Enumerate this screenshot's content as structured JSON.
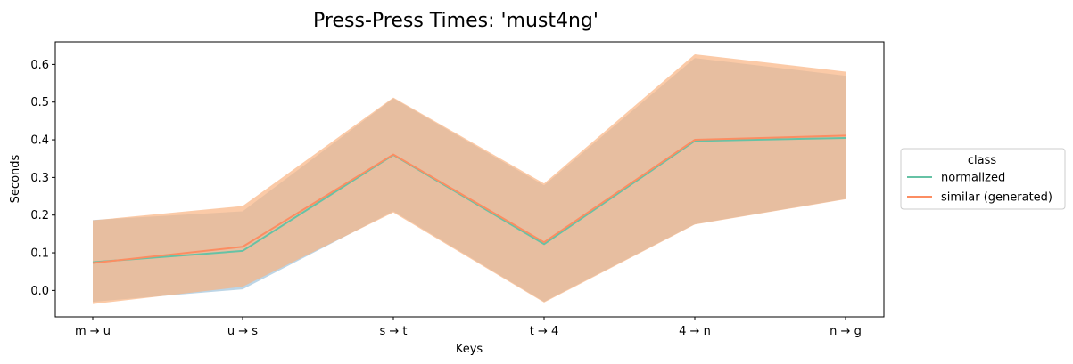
{
  "chart_data": {
    "type": "line",
    "title": "Press-Press Times: 'must4ng'",
    "xlabel": "Keys",
    "ylabel": "Seconds",
    "categories": [
      "m → u",
      "u → s",
      "s → t",
      "t → 4",
      "4 → n",
      "n → g"
    ],
    "ylim": [
      -0.07,
      0.66
    ],
    "yticks": [
      0.0,
      0.1,
      0.2,
      0.3,
      0.4,
      0.5,
      0.6
    ],
    "ytick_labels": [
      "0.0",
      "0.1",
      "0.2",
      "0.3",
      "0.4",
      "0.5",
      "0.6"
    ],
    "grid": false,
    "legend": {
      "title": "class",
      "placement": "center-right-outside"
    },
    "series": [
      {
        "name": "normalized",
        "color": "#66c2a5",
        "band_color": "#8fb9d6",
        "values": [
          0.075,
          0.105,
          0.36,
          0.123,
          0.397,
          0.405
        ],
        "lower": [
          -0.03,
          0.003,
          0.21,
          -0.03,
          0.176,
          0.243
        ],
        "upper": [
          0.187,
          0.21,
          0.51,
          0.279,
          0.617,
          0.57
        ]
      },
      {
        "name": "similar (generated)",
        "color": "#fc8d62",
        "band_color": "#f9b481",
        "values": [
          0.073,
          0.116,
          0.361,
          0.128,
          0.4,
          0.411
        ],
        "lower": [
          -0.036,
          0.01,
          0.207,
          -0.032,
          0.175,
          0.242
        ],
        "upper": [
          0.186,
          0.224,
          0.512,
          0.284,
          0.627,
          0.581
        ]
      }
    ]
  }
}
